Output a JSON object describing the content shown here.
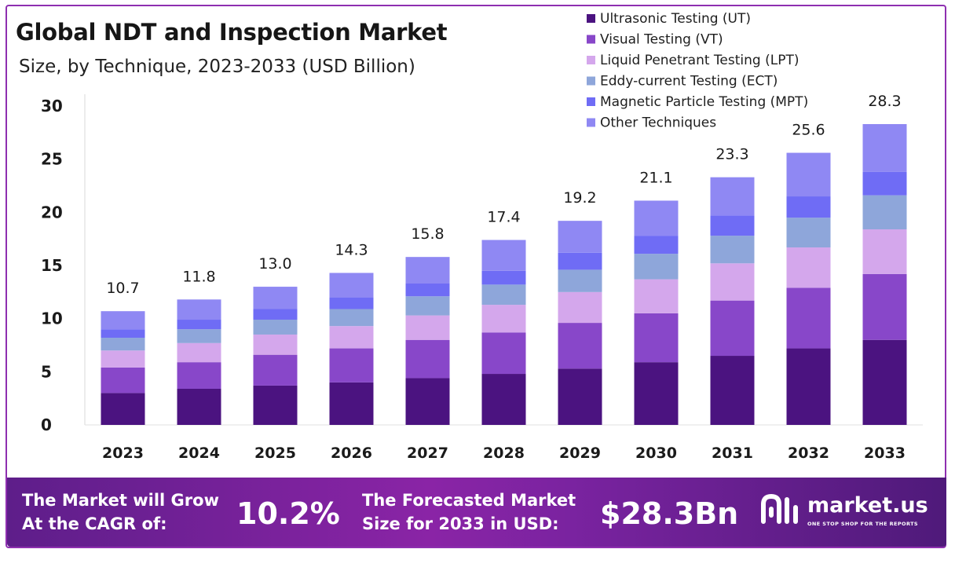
{
  "chart_data": {
    "type": "stacked-bar",
    "title": "Global NDT and Inspection Market",
    "subtitle": "Size, by Technique, 2023-2033 (USD Billion)",
    "xlabel": "",
    "ylabel": "",
    "ylim": [
      0,
      30
    ],
    "yticks": [
      0,
      5,
      10,
      15,
      20,
      25,
      30
    ],
    "categories": [
      "2023",
      "2024",
      "2025",
      "2026",
      "2027",
      "2028",
      "2029",
      "2030",
      "2031",
      "2032",
      "2033"
    ],
    "totals": [
      10.7,
      11.8,
      13.0,
      14.3,
      15.8,
      17.4,
      19.2,
      21.1,
      23.3,
      25.6,
      28.3
    ],
    "total_labels": [
      "10.7",
      "11.8",
      "13.0",
      "14.3",
      "15.8",
      "17.4",
      "19.2",
      "21.1",
      "23.3",
      "25.6",
      "28.3"
    ],
    "legend_position": "top-right",
    "series": [
      {
        "name": "Ultrasonic Testing (UT)",
        "color": "#4b1380",
        "values": [
          3.0,
          3.4,
          3.7,
          4.0,
          4.4,
          4.8,
          5.3,
          5.9,
          6.5,
          7.2,
          8.0
        ]
      },
      {
        "name": "Visual Testing (VT)",
        "color": "#8847c9",
        "values": [
          2.4,
          2.5,
          2.9,
          3.2,
          3.6,
          3.9,
          4.3,
          4.6,
          5.2,
          5.7,
          6.2
        ]
      },
      {
        "name": "Liquid Penetrant Testing (LPT)",
        "color": "#d4a7ec",
        "values": [
          1.6,
          1.8,
          1.9,
          2.1,
          2.3,
          2.6,
          2.9,
          3.2,
          3.5,
          3.8,
          4.2
        ]
      },
      {
        "name": "Eddy-current Testing (ECT)",
        "color": "#8ea6da",
        "values": [
          1.2,
          1.3,
          1.4,
          1.6,
          1.8,
          1.9,
          2.1,
          2.4,
          2.6,
          2.8,
          3.2
        ]
      },
      {
        "name": "Magnetic Particle Testing (MPT)",
        "color": "#6f6cf5",
        "values": [
          0.8,
          0.9,
          1.0,
          1.1,
          1.2,
          1.3,
          1.6,
          1.7,
          1.9,
          2.0,
          2.2
        ]
      },
      {
        "name": "Other Techniques",
        "color": "#8f88f3",
        "values": [
          1.7,
          1.9,
          2.1,
          2.3,
          2.5,
          2.9,
          3.0,
          3.3,
          3.6,
          4.1,
          4.5
        ]
      }
    ]
  },
  "footer": {
    "cagr_line1": "The Market will Grow",
    "cagr_line2": "At the CAGR of:",
    "cagr_value": "10.2%",
    "forecast_line1": "The Forecasted Market",
    "forecast_line2": "Size for 2033 in USD:",
    "forecast_value": "$28.3Bn",
    "brand_name": "market.us",
    "brand_tagline": "ONE STOP SHOP FOR THE REPORTS"
  }
}
